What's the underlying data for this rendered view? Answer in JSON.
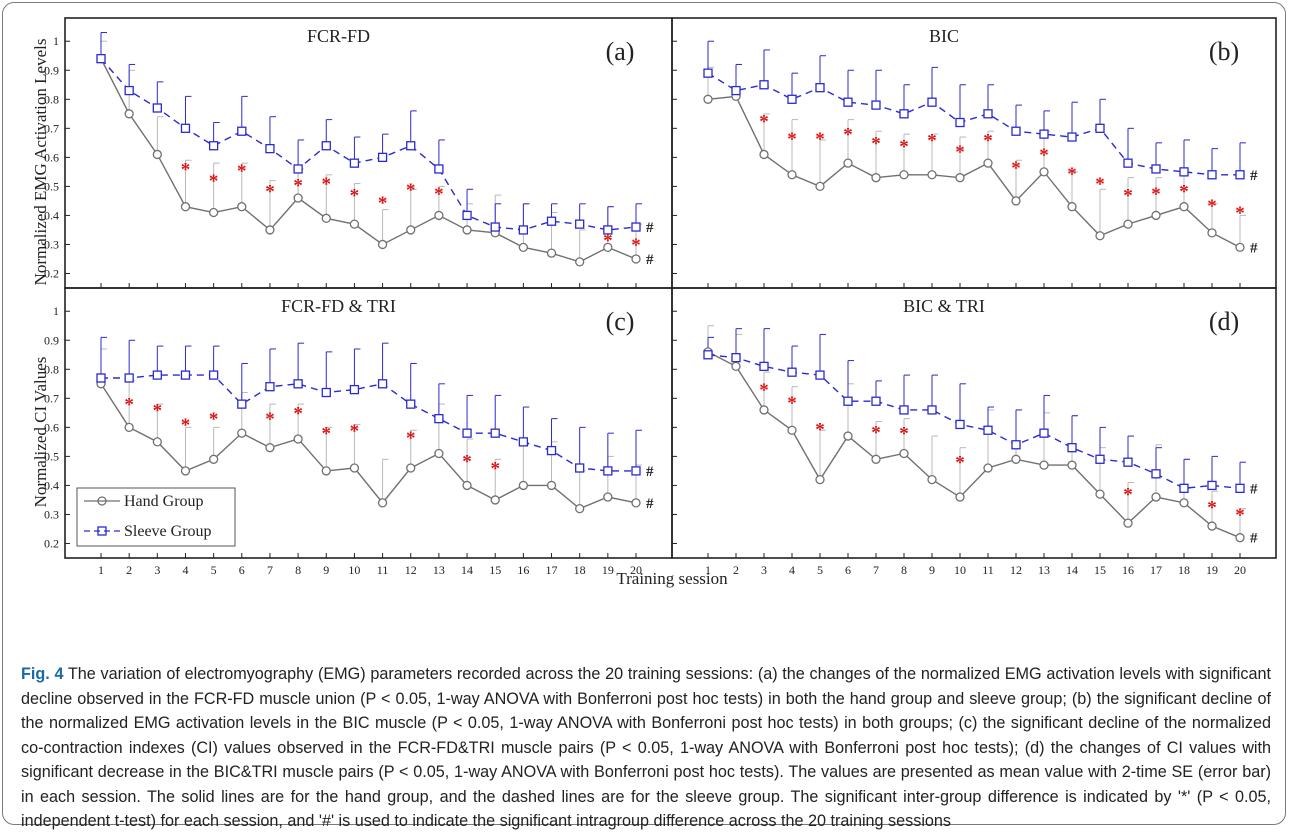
{
  "figure": {
    "ylabel_top": "Normalized EMG Activation Levels",
    "ylabel_bottom": "Normalized CI Values",
    "xlabel": "Training session",
    "legend": [
      {
        "name": "Hand Group",
        "color": "#707070",
        "style": "solid",
        "marker": "circle"
      },
      {
        "name": "Sleeve Group",
        "color": "#2a2ad0",
        "style": "dashed",
        "marker": "square"
      }
    ],
    "colors": {
      "hand": "#707070",
      "sleeve": "#2a2ad0",
      "star": "#dd1111"
    }
  },
  "chart_data": [
    {
      "type": "line",
      "title": "FCR-FD",
      "panel_label": "(a)",
      "x": [
        1,
        2,
        3,
        4,
        5,
        6,
        7,
        8,
        9,
        10,
        11,
        12,
        13,
        14,
        15,
        16,
        17,
        18,
        19,
        20
      ],
      "ylim": [
        0.15,
        1.08
      ],
      "yticks": [
        0.2,
        0.3,
        0.4,
        0.5,
        0.6,
        0.7,
        0.8,
        0.9,
        1
      ],
      "series": [
        {
          "name": "Hand Group",
          "values": [
            0.94,
            0.75,
            0.61,
            0.43,
            0.41,
            0.43,
            0.35,
            0.46,
            0.39,
            0.37,
            0.3,
            0.35,
            0.4,
            0.35,
            0.34,
            0.29,
            0.27,
            0.24,
            0.29,
            0.25
          ],
          "error": [
            0.06,
            0.15,
            0.13,
            0.16,
            0.17,
            0.15,
            0.17,
            0.1,
            0.15,
            0.14,
            0.12,
            0.14,
            0.1,
            0.09,
            0.13,
            0.15,
            0.14,
            0.11,
            0.14,
            0.12
          ]
        },
        {
          "name": "Sleeve Group",
          "values": [
            0.94,
            0.83,
            0.77,
            0.7,
            0.64,
            0.69,
            0.63,
            0.56,
            0.64,
            0.58,
            0.6,
            0.64,
            0.56,
            0.4,
            0.36,
            0.35,
            0.38,
            0.37,
            0.35,
            0.36
          ],
          "error": [
            0.09,
            0.09,
            0.09,
            0.11,
            0.08,
            0.12,
            0.11,
            0.1,
            0.09,
            0.09,
            0.08,
            0.12,
            0.1,
            0.09,
            0.08,
            0.09,
            0.06,
            0.07,
            0.08,
            0.08
          ]
        }
      ],
      "sig_sessions": [
        4,
        5,
        6,
        7,
        8,
        9,
        10,
        11,
        12,
        13,
        19,
        20
      ],
      "intragroup_marker": "#"
    },
    {
      "type": "line",
      "title": "BIC",
      "panel_label": "(b)",
      "x": [
        1,
        2,
        3,
        4,
        5,
        6,
        7,
        8,
        9,
        10,
        11,
        12,
        13,
        14,
        15,
        16,
        17,
        18,
        19,
        20
      ],
      "ylim": [
        0.15,
        1.08
      ],
      "yticks": [
        0.2,
        0.3,
        0.4,
        0.5,
        0.6,
        0.7,
        0.8,
        0.9,
        1
      ],
      "series": [
        {
          "name": "Hand Group",
          "values": [
            0.8,
            0.81,
            0.61,
            0.54,
            0.5,
            0.58,
            0.53,
            0.54,
            0.54,
            0.53,
            0.58,
            0.45,
            0.55,
            0.43,
            0.33,
            0.37,
            0.4,
            0.43,
            0.34,
            0.29
          ],
          "error": [
            0.11,
            0.11,
            0.14,
            0.19,
            0.16,
            0.15,
            0.16,
            0.14,
            0.14,
            0.14,
            0.11,
            0.14,
            0.14,
            0.12,
            0.16,
            0.16,
            0.13,
            0.12,
            0.1,
            0.11
          ]
        },
        {
          "name": "Sleeve Group",
          "values": [
            0.89,
            0.83,
            0.85,
            0.8,
            0.84,
            0.79,
            0.78,
            0.75,
            0.79,
            0.72,
            0.75,
            0.69,
            0.68,
            0.67,
            0.7,
            0.58,
            0.56,
            0.55,
            0.54,
            0.54
          ],
          "error": [
            0.11,
            0.09,
            0.12,
            0.09,
            0.11,
            0.11,
            0.12,
            0.1,
            0.12,
            0.13,
            0.1,
            0.09,
            0.08,
            0.12,
            0.1,
            0.12,
            0.09,
            0.11,
            0.09,
            0.11
          ]
        }
      ],
      "sig_sessions": [
        3,
        4,
        5,
        6,
        7,
        8,
        9,
        10,
        11,
        12,
        13,
        14,
        15,
        16,
        17,
        18,
        19,
        20
      ],
      "intragroup_marker": "#"
    },
    {
      "type": "line",
      "title": "FCR-FD & TRI",
      "panel_label": "(c)",
      "x": [
        1,
        2,
        3,
        4,
        5,
        6,
        7,
        8,
        9,
        10,
        11,
        12,
        13,
        14,
        15,
        16,
        17,
        18,
        19,
        20
      ],
      "ylim": [
        0.15,
        1.08
      ],
      "yticks": [
        0.2,
        0.3,
        0.4,
        0.5,
        0.6,
        0.7,
        0.8,
        0.9,
        1
      ],
      "series": [
        {
          "name": "Hand Group",
          "values": [
            0.75,
            0.6,
            0.55,
            0.45,
            0.49,
            0.58,
            0.53,
            0.56,
            0.45,
            0.46,
            0.34,
            0.46,
            0.51,
            0.4,
            0.35,
            0.4,
            0.4,
            0.32,
            0.36,
            0.34
          ],
          "error": [
            0.12,
            0.16,
            0.13,
            0.15,
            0.11,
            0.14,
            0.15,
            0.12,
            0.15,
            0.15,
            0.15,
            0.13,
            0.17,
            0.16,
            0.14,
            0.14,
            0.15,
            0.13,
            0.14,
            0.13
          ]
        },
        {
          "name": "Sleeve Group",
          "values": [
            0.77,
            0.77,
            0.78,
            0.78,
            0.78,
            0.68,
            0.74,
            0.75,
            0.72,
            0.73,
            0.75,
            0.68,
            0.63,
            0.58,
            0.58,
            0.55,
            0.52,
            0.46,
            0.45,
            0.45
          ],
          "error": [
            0.14,
            0.13,
            0.1,
            0.1,
            0.1,
            0.14,
            0.13,
            0.14,
            0.14,
            0.14,
            0.14,
            0.14,
            0.12,
            0.13,
            0.13,
            0.12,
            0.11,
            0.14,
            0.13,
            0.14
          ]
        }
      ],
      "sig_sessions": [
        2,
        3,
        4,
        5,
        7,
        8,
        9,
        10,
        12,
        14,
        15
      ],
      "intragroup_marker": "#"
    },
    {
      "type": "line",
      "title": "BIC & TRI",
      "panel_label": "(d)",
      "x": [
        1,
        2,
        3,
        4,
        5,
        6,
        7,
        8,
        9,
        10,
        11,
        12,
        13,
        14,
        15,
        16,
        17,
        18,
        19,
        20
      ],
      "ylim": [
        0.15,
        1.08
      ],
      "yticks": [
        0.2,
        0.3,
        0.4,
        0.5,
        0.6,
        0.7,
        0.8,
        0.9,
        1
      ],
      "series": [
        {
          "name": "Hand Group",
          "values": [
            0.86,
            0.81,
            0.66,
            0.59,
            0.42,
            0.57,
            0.49,
            0.51,
            0.42,
            0.36,
            0.46,
            0.49,
            0.47,
            0.47,
            0.37,
            0.27,
            0.36,
            0.34,
            0.26,
            0.22
          ],
          "error": [
            0.09,
            0.11,
            0.13,
            0.15,
            0.17,
            0.18,
            0.13,
            0.12,
            0.15,
            0.17,
            0.2,
            0.17,
            0.18,
            0.17,
            0.16,
            0.14,
            0.18,
            0.15,
            0.12,
            0.1
          ]
        },
        {
          "name": "Sleeve Group",
          "values": [
            0.85,
            0.84,
            0.81,
            0.79,
            0.78,
            0.69,
            0.69,
            0.66,
            0.66,
            0.61,
            0.59,
            0.54,
            0.58,
            0.53,
            0.49,
            0.48,
            0.44,
            0.39,
            0.4,
            0.39
          ],
          "error": [
            0.06,
            0.1,
            0.13,
            0.09,
            0.14,
            0.14,
            0.07,
            0.12,
            0.12,
            0.14,
            0.08,
            0.12,
            0.13,
            0.11,
            0.11,
            0.09,
            0.09,
            0.1,
            0.1,
            0.09
          ]
        }
      ],
      "sig_sessions": [
        3,
        4,
        5,
        7,
        8,
        10,
        16,
        19,
        20
      ],
      "intragroup_marker": "#"
    }
  ],
  "caption": {
    "fig_label": "Fig. 4",
    "text": " The variation of electromyography (EMG) parameters recorded across the 20 training sessions: (a) the changes of the normalized EMG activation levels with significant decline observed in the FCR-FD muscle union (P < 0.05, 1-way ANOVA with Bonferroni post hoc tests) in both the hand group and sleeve group; (b) the significant decline of the normalized EMG activation levels in the BIC muscle (P < 0.05, 1-way ANOVA with Bonferroni post hoc tests) in both groups; (c) the significant decline of the normalized co-contraction indexes (CI) values observed in the FCR-FD&TRI muscle pairs (P < 0.05, 1-way ANOVA with Bonferroni post hoc tests); (d) the changes of CI values with significant decrease in the BIC&TRI muscle pairs (P < 0.05, 1-way ANOVA with Bonferroni post hoc tests). The values are presented as mean value with 2-time SE (error bar) in each session. The solid lines are for the hand group, and the dashed lines are for the sleeve group. The significant inter-group difference is indicated by '*' (P < 0.05, independent t-test) for each session, and '#' is used to indicate the significant intragroup difference across the 20 training sessions"
  }
}
